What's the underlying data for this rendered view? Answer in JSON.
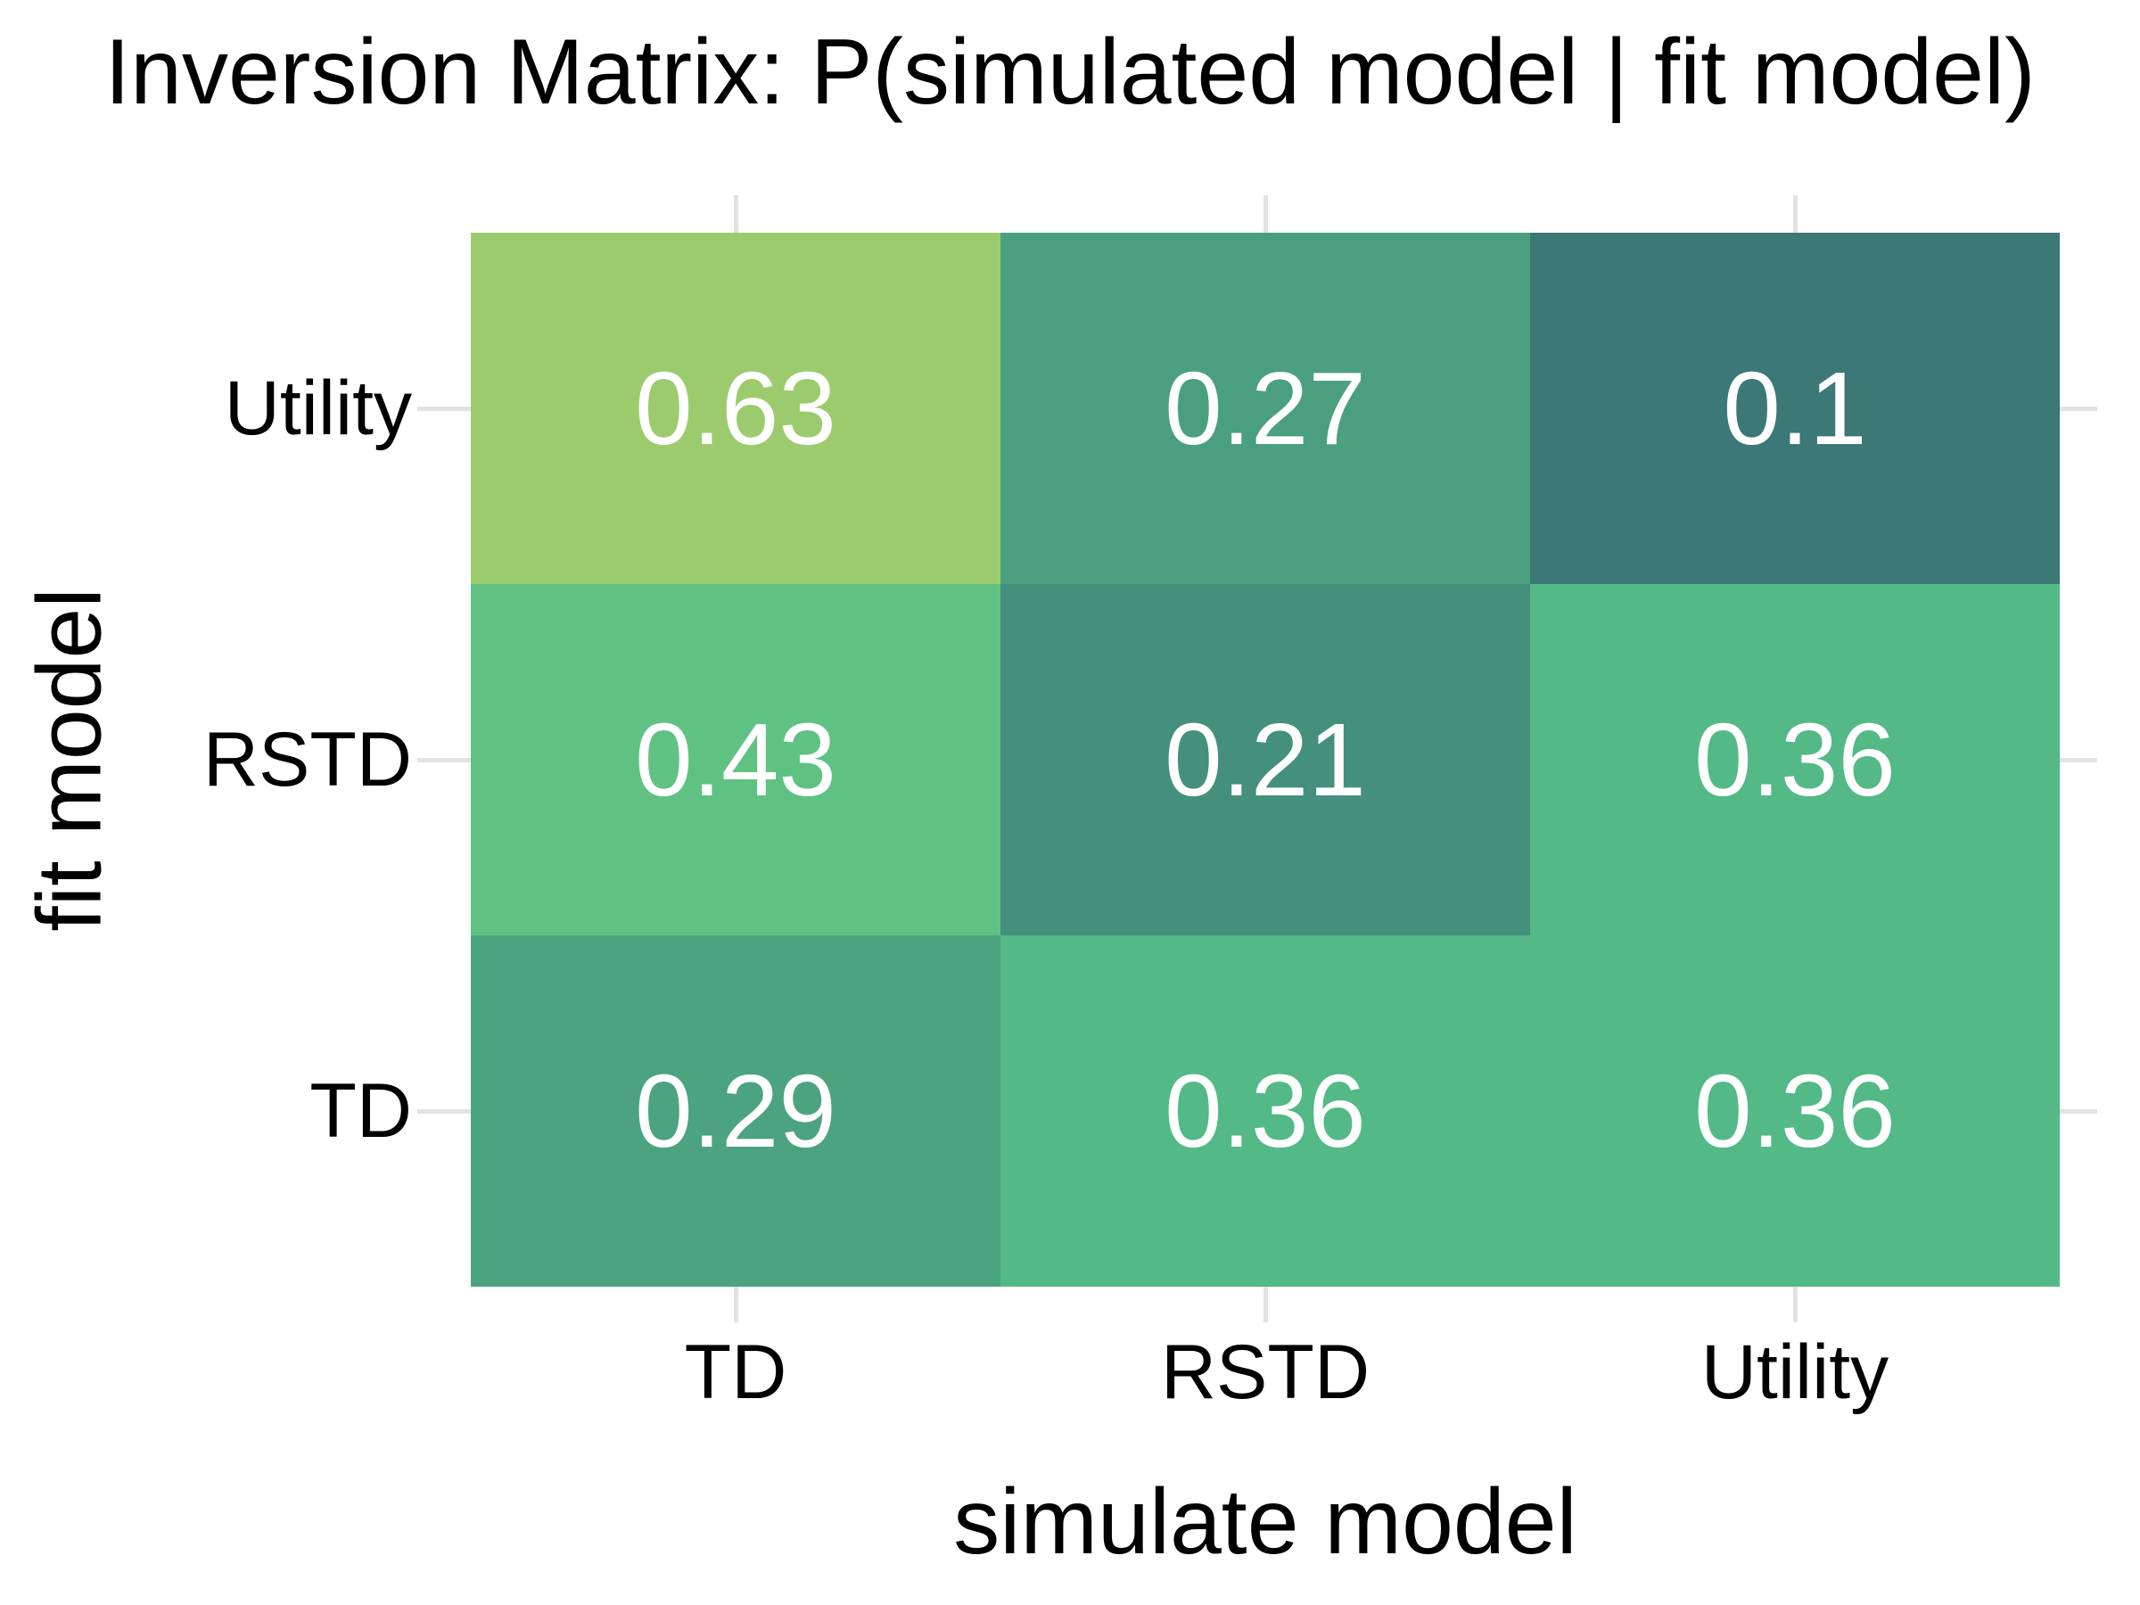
{
  "title": "Inversion Matrix: P(simulated model | fit model)",
  "chart_data": {
    "type": "heatmap",
    "title": "Inversion Matrix: P(simulated model | fit model)",
    "xlabel": "simulate model",
    "ylabel": "fit model",
    "x_categories": [
      "TD",
      "RSTD",
      "Utility"
    ],
    "y_categories": [
      "Utility",
      "RSTD",
      "TD"
    ],
    "matrix": [
      [
        0.63,
        0.27,
        0.1
      ],
      [
        0.43,
        0.21,
        0.36
      ],
      [
        0.29,
        0.36,
        0.36
      ]
    ],
    "cell_labels": [
      [
        "0.63",
        "0.27",
        "0.1"
      ],
      [
        "0.43",
        "0.21",
        "0.36"
      ],
      [
        "0.29",
        "0.36",
        "0.36"
      ]
    ],
    "cell_colors": [
      [
        "#9ccb6d",
        "#4aa07e",
        "#3b7876"
      ],
      [
        "#5fc283",
        "#44907c",
        "#53b986"
      ],
      [
        "#4ba47f",
        "#53b986",
        "#53b986"
      ]
    ],
    "value_text_color": "#ffffff",
    "grid_color": "#e2e2e2",
    "value_range": [
      0,
      1
    ],
    "legend": "none",
    "grid": "stubs-outside-tiles"
  }
}
